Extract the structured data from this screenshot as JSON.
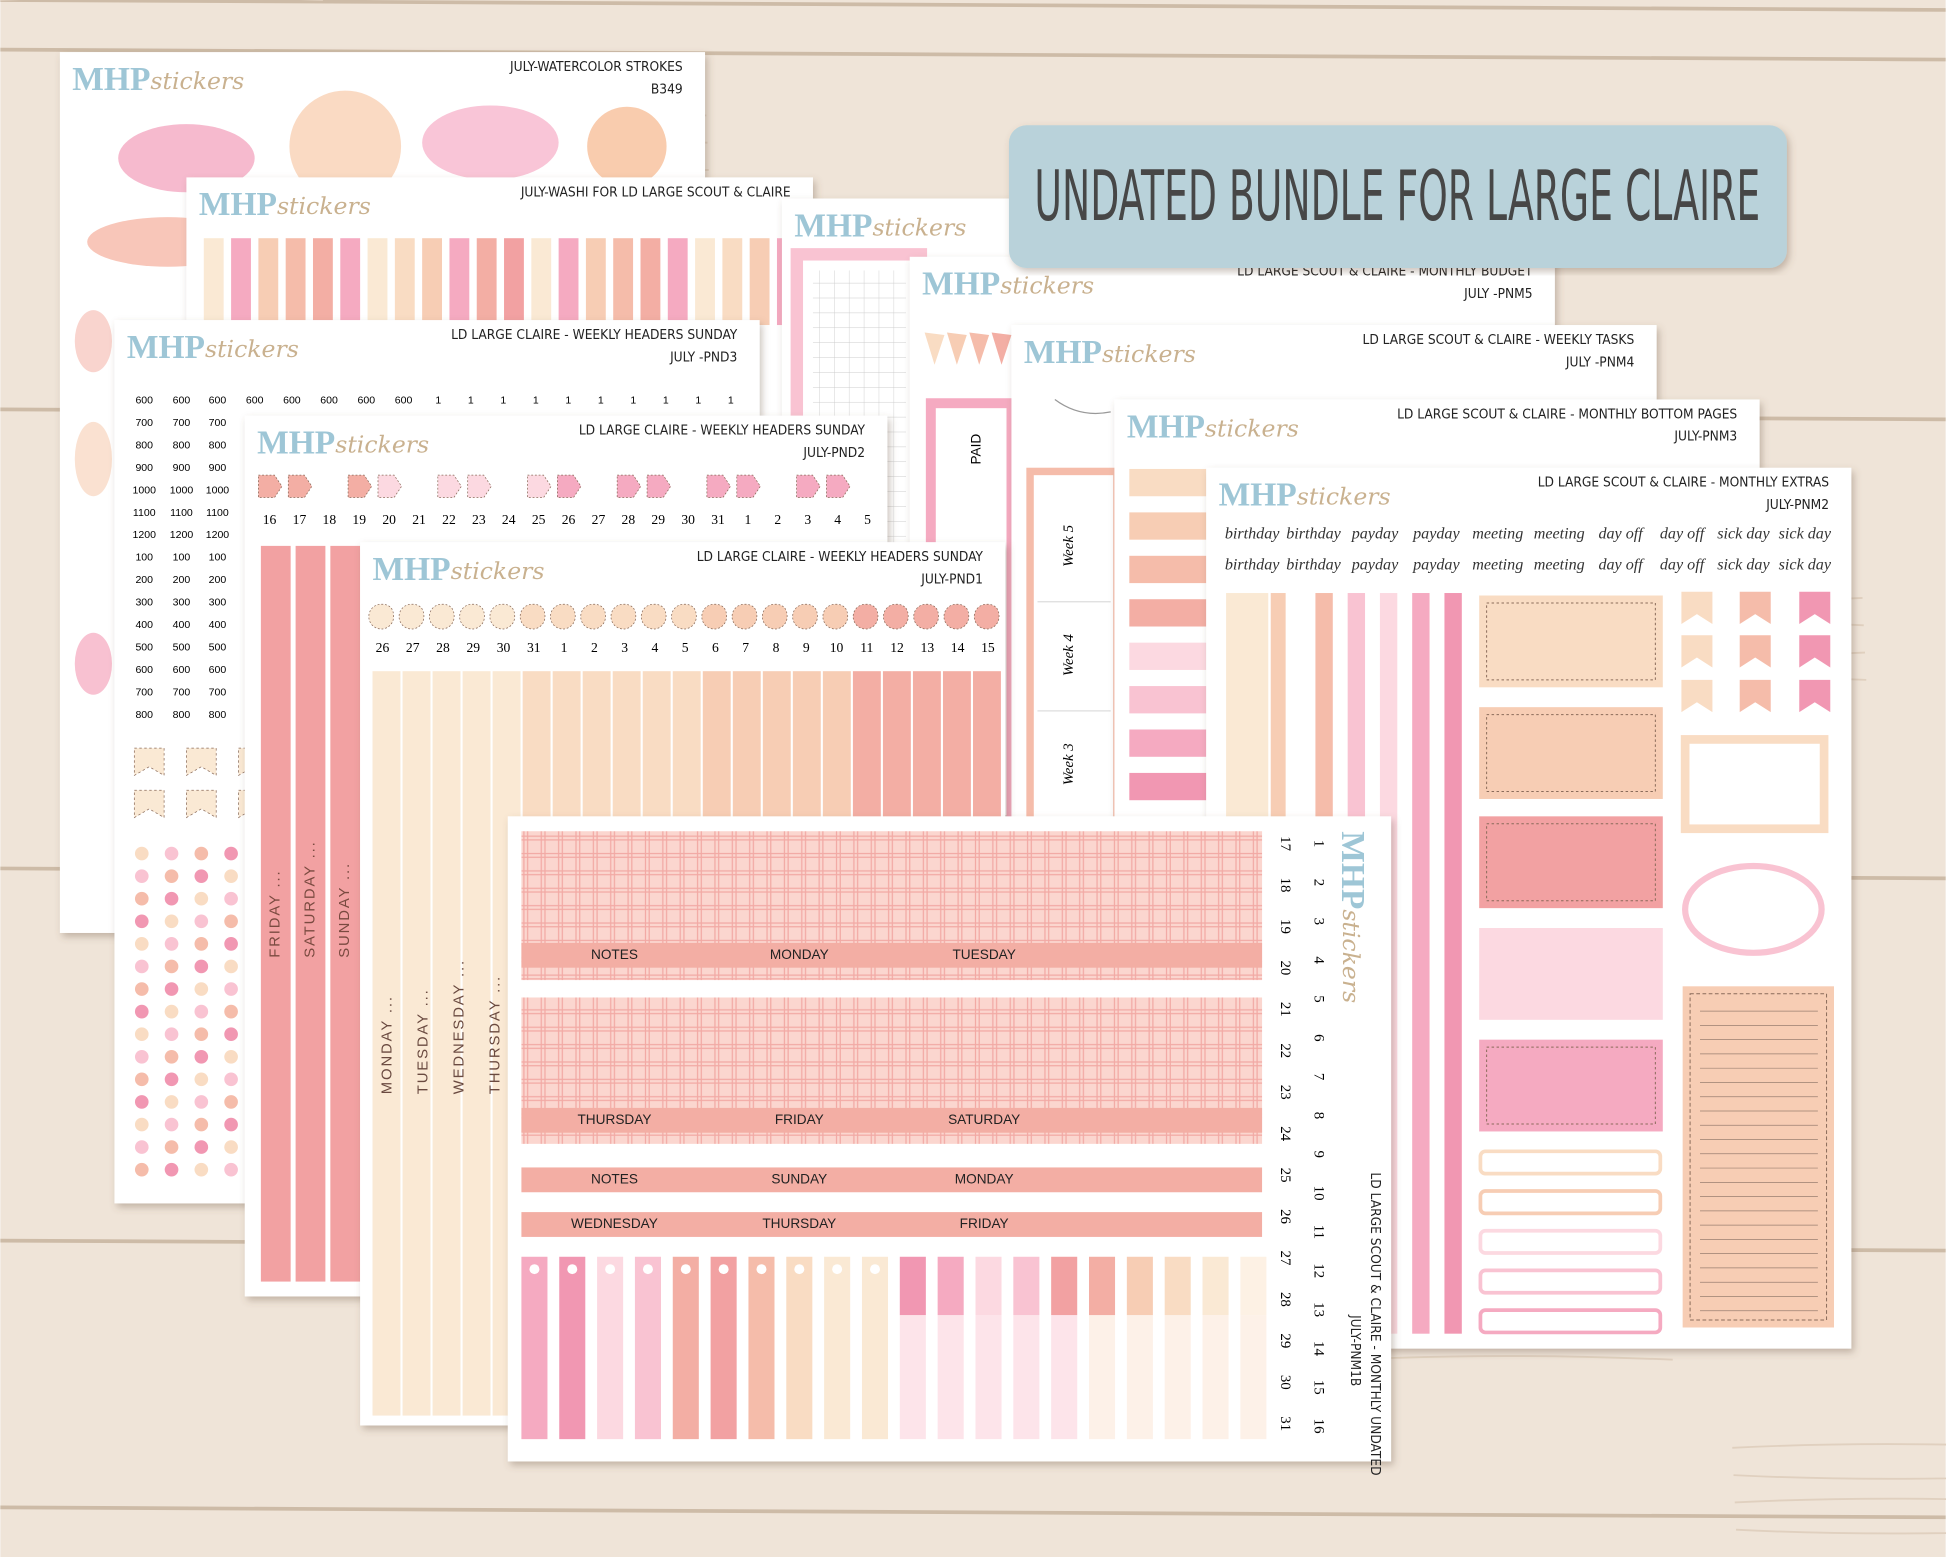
{
  "banner": "UNDATED BUNDLE FOR LARGE CLAIRE",
  "brand": {
    "mark": "MHP",
    "script": "stickers"
  },
  "sheets": {
    "watercolor": {
      "title": "JULY-WATERCOLOR STROKES",
      "code": "B349"
    },
    "washi": {
      "title": "JULY-WASHI FOR LD LARGE SCOUT & CLAIRE"
    },
    "budget": {
      "title": "LD LARGE SCOUT & CLAIRE - MONTHLY BUDGET",
      "code": "JULY -PNM5",
      "label": "PAID"
    },
    "tasks": {
      "title": "LD LARGE SCOUT & CLAIRE - WEEKLY TASKS",
      "code": "JULY -PNM4",
      "weeks": [
        "Week 5",
        "Week 4",
        "Week 3"
      ]
    },
    "bottom": {
      "title": "LD LARGE SCOUT & CLAIRE - MONTHLY BOTTOM PAGES",
      "code": "JULY-PNM3"
    },
    "extras": {
      "title": "LD LARGE SCOUT & CLAIRE - MONTHLY EXTRAS",
      "code": "JULY-PNM2",
      "labels": [
        "birthday",
        "birthday",
        "payday",
        "payday",
        "meeting",
        "meeting",
        "day off",
        "day off",
        "sick day",
        "sick day"
      ]
    },
    "pnd3": {
      "title": "LD LARGE CLAIRE - WEEKLY HEADERS SUNDAY",
      "code": "JULY -PND3",
      "hours": [
        600,
        700,
        800,
        900,
        1000,
        1100,
        1200,
        100,
        200,
        300,
        400,
        500,
        600,
        700,
        800
      ],
      "one": 1
    },
    "pnd2": {
      "title": "LD LARGE CLAIRE - WEEKLY HEADERS SUNDAY",
      "code": "JULY-PND2",
      "dates": [
        16,
        17,
        18,
        19,
        20,
        21,
        22,
        23,
        24,
        25,
        26,
        27,
        28,
        29,
        30,
        31,
        1,
        2,
        3,
        4,
        5
      ],
      "days": [
        "FRIDAY ...",
        "SATURDAY ...",
        "SUNDAY ..."
      ]
    },
    "pnd1": {
      "title": "LD LARGE CLAIRE - WEEKLY HEADERS SUNDAY",
      "code": "JULY-PND1",
      "dates": [
        26,
        27,
        28,
        29,
        30,
        31,
        1,
        2,
        3,
        4,
        5,
        6,
        7,
        8,
        9,
        10,
        11,
        12,
        13,
        14,
        15
      ],
      "days": [
        "MONDAY ...",
        "TUESDAY ...",
        "WEDNESDAY ...",
        "THURSDAY ..."
      ]
    },
    "monthly": {
      "title": "LD LARGE SCOUT & CLAIRE - MONTHLY UNDATED",
      "code": "JULY-PNM1B",
      "headers": [
        [
          "NOTES",
          "MONDAY",
          "TUESDAY"
        ],
        [
          "THURSDAY",
          "FRIDAY",
          "SATURDAY"
        ],
        [
          "NOTES",
          "SUNDAY",
          "MONDAY"
        ],
        [
          "WEDNESDAY",
          "THURSDAY",
          "FRIDAY"
        ]
      ],
      "dates_a": [
        17,
        18,
        19,
        20,
        21,
        22,
        23,
        24,
        25,
        26,
        27,
        28,
        29,
        30,
        31
      ],
      "dates_b": [
        1,
        2,
        3,
        4,
        5,
        6,
        7,
        8,
        9,
        10,
        11,
        12,
        13,
        14,
        15,
        16
      ]
    }
  }
}
